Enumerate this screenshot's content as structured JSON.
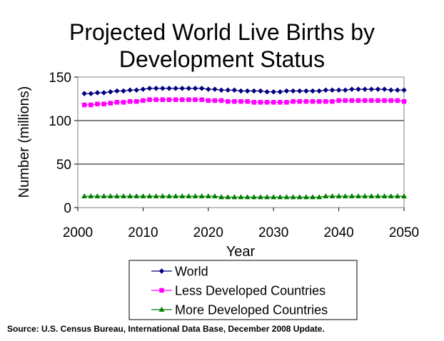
{
  "chart_data": {
    "type": "line",
    "title_line1": "Projected World Live Births by",
    "title_line2": "Development Status",
    "xlabel": "Year",
    "ylabel": "Number (millions)",
    "xlim": [
      2000,
      2050
    ],
    "ylim": [
      0,
      150
    ],
    "x_ticks": [
      "2000",
      "2010",
      "2020",
      "2030",
      "2040",
      "2050"
    ],
    "y_ticks": [
      "0",
      "50",
      "100",
      "150"
    ],
    "grid": "horizontal",
    "legend_position": "bottom",
    "x": [
      2001,
      2002,
      2003,
      2004,
      2005,
      2006,
      2007,
      2008,
      2009,
      2010,
      2011,
      2012,
      2013,
      2014,
      2015,
      2016,
      2017,
      2018,
      2019,
      2020,
      2021,
      2022,
      2023,
      2024,
      2025,
      2026,
      2027,
      2028,
      2029,
      2030,
      2031,
      2032,
      2033,
      2034,
      2035,
      2036,
      2037,
      2038,
      2039,
      2040,
      2041,
      2042,
      2043,
      2044,
      2045,
      2046,
      2047,
      2048,
      2049,
      2050
    ],
    "series": [
      {
        "name": "World",
        "color": "#000080",
        "marker": "diamond",
        "values": [
          131,
          131,
          132,
          132,
          133,
          134,
          134,
          135,
          135,
          136,
          137,
          137,
          137,
          137,
          137,
          137,
          137,
          137,
          137,
          136,
          136,
          135,
          135,
          135,
          134,
          134,
          134,
          134,
          133,
          133,
          133,
          134,
          134,
          134,
          134,
          134,
          134,
          135,
          135,
          135,
          135,
          136,
          136,
          136,
          136,
          136,
          136,
          135,
          135,
          135
        ]
      },
      {
        "name": "Less Developed Countries",
        "color": "#ff00ff",
        "marker": "square",
        "values": [
          118,
          118,
          119,
          119,
          120,
          121,
          121,
          122,
          122,
          123,
          124,
          124,
          124,
          124,
          124,
          124,
          124,
          124,
          124,
          123,
          123,
          123,
          122,
          122,
          122,
          122,
          121,
          121,
          121,
          121,
          121,
          121,
          122,
          122,
          122,
          122,
          122,
          122,
          122,
          123,
          123,
          123,
          123,
          123,
          123,
          123,
          123,
          123,
          123,
          122
        ]
      },
      {
        "name": "More Developed Countries",
        "color": "#008000",
        "marker": "triangle",
        "values": [
          13,
          13,
          13,
          13,
          13,
          13,
          13,
          13,
          13,
          13,
          13,
          13,
          13,
          13,
          13,
          13,
          13,
          13,
          13,
          13,
          13,
          12,
          12,
          12,
          12,
          12,
          12,
          12,
          12,
          12,
          12,
          12,
          12,
          12,
          12,
          12,
          12,
          13,
          13,
          13,
          13,
          13,
          13,
          13,
          13,
          13,
          13,
          13,
          13,
          13
        ]
      }
    ]
  },
  "source_note": "Source: U.S. Census Bureau, International Data Base, December 2008 Update."
}
